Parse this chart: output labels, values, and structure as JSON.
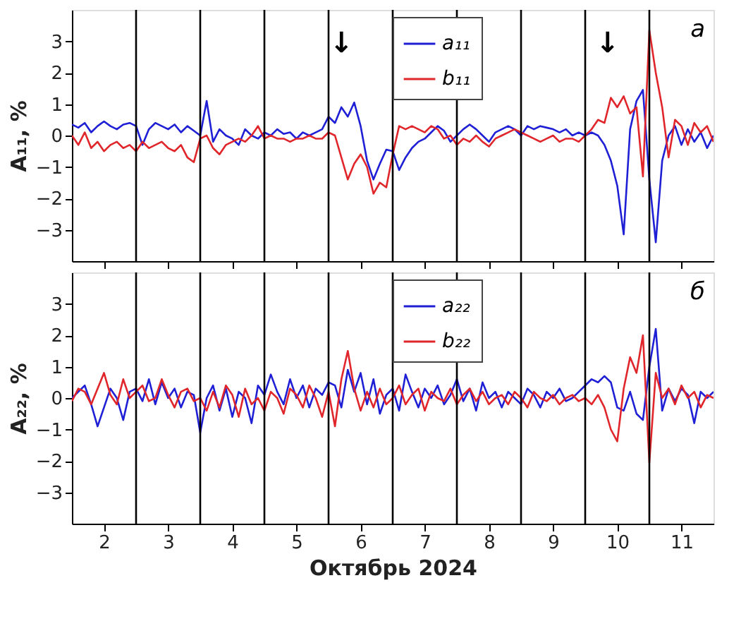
{
  "chart_data": [
    {
      "type": "line",
      "ylabel": "A₁₁, %",
      "tick_labels": "y",
      "legend": "top",
      "xlim": [
        1.5,
        11.5
      ],
      "ylim": [
        -4,
        4
      ],
      "xticks": [
        2,
        3,
        4,
        5,
        6,
        7,
        8,
        9,
        10,
        11
      ],
      "yticks": [
        -3,
        -2,
        -1,
        0,
        1,
        2,
        3
      ],
      "x": [
        1.5,
        1.6,
        1.7,
        1.8,
        1.9,
        2.0,
        2.1,
        2.2,
        2.3,
        2.4,
        2.5,
        2.6,
        2.7,
        2.8,
        2.9,
        3.0,
        3.1,
        3.2,
        3.3,
        3.4,
        3.5,
        3.6,
        3.7,
        3.8,
        3.9,
        4.0,
        4.1,
        4.2,
        4.3,
        4.4,
        4.5,
        4.6,
        4.7,
        4.8,
        4.9,
        5.0,
        5.1,
        5.2,
        5.3,
        5.4,
        5.5,
        5.6,
        5.7,
        5.8,
        5.9,
        6.0,
        6.1,
        6.2,
        6.3,
        6.4,
        6.5,
        6.6,
        6.7,
        6.8,
        6.9,
        7.0,
        7.1,
        7.2,
        7.3,
        7.4,
        7.5,
        7.6,
        7.7,
        7.8,
        7.9,
        8.0,
        8.1,
        8.2,
        8.3,
        8.4,
        8.5,
        8.6,
        8.7,
        8.8,
        8.9,
        9.0,
        9.1,
        9.2,
        9.3,
        9.4,
        9.5,
        9.6,
        9.7,
        9.8,
        9.9,
        10.0,
        10.1,
        10.2,
        10.3,
        10.4,
        10.5,
        10.6,
        10.7,
        10.8,
        10.9,
        11.0,
        11.1,
        11.2,
        11.3,
        11.4,
        11.5
      ],
      "series": [
        {
          "name": "a₁₁",
          "color": "#1f1fd6",
          "values": [
            0.35,
            0.25,
            0.4,
            0.1,
            0.3,
            0.45,
            0.3,
            0.2,
            0.35,
            0.4,
            0.3,
            -0.3,
            0.2,
            0.4,
            0.3,
            0.2,
            0.35,
            0.1,
            0.3,
            0.15,
            0.0,
            1.1,
            -0.2,
            0.2,
            0.0,
            -0.1,
            -0.3,
            0.2,
            0.0,
            -0.1,
            0.1,
            0.0,
            0.2,
            0.05,
            0.1,
            -0.1,
            0.1,
            0.0,
            0.1,
            0.2,
            0.6,
            0.4,
            0.9,
            0.6,
            1.05,
            0.3,
            -0.8,
            -1.4,
            -0.9,
            -0.45,
            -0.5,
            -1.1,
            -0.7,
            -0.4,
            -0.2,
            -0.1,
            0.1,
            0.3,
            0.15,
            -0.2,
            0.0,
            0.2,
            0.35,
            0.2,
            0.0,
            -0.2,
            0.1,
            0.2,
            0.3,
            0.2,
            0.0,
            0.3,
            0.2,
            0.3,
            0.25,
            0.2,
            0.1,
            0.2,
            0.0,
            0.1,
            0.0,
            0.1,
            0.0,
            -0.3,
            -0.8,
            -1.6,
            -3.15,
            0.2,
            1.1,
            1.45,
            -1.4,
            -3.4,
            -0.8,
            0.0,
            0.3,
            -0.3,
            0.2,
            -0.2,
            0.1,
            -0.4,
            0.0
          ]
        },
        {
          "name": "b₁₁",
          "color": "#e0262a",
          "values": [
            0.0,
            -0.3,
            0.1,
            -0.4,
            -0.2,
            -0.5,
            -0.3,
            -0.2,
            -0.4,
            -0.3,
            -0.5,
            -0.2,
            -0.4,
            -0.3,
            -0.2,
            -0.4,
            -0.5,
            -0.3,
            -0.7,
            -0.85,
            -0.1,
            0.0,
            -0.4,
            -0.6,
            -0.3,
            -0.2,
            -0.1,
            -0.2,
            0.0,
            0.3,
            -0.1,
            0.0,
            -0.1,
            -0.1,
            -0.2,
            -0.1,
            -0.1,
            0.0,
            -0.1,
            -0.1,
            0.1,
            0.0,
            -0.7,
            -1.4,
            -0.9,
            -0.6,
            -1.0,
            -1.85,
            -1.5,
            -1.65,
            -0.6,
            0.3,
            0.2,
            0.3,
            0.2,
            0.1,
            0.3,
            0.2,
            -0.1,
            0.0,
            -0.3,
            -0.1,
            -0.2,
            0.0,
            -0.2,
            -0.35,
            -0.1,
            0.0,
            0.1,
            0.2,
            0.1,
            0.0,
            -0.1,
            -0.2,
            -0.1,
            0.0,
            -0.2,
            -0.1,
            -0.1,
            -0.2,
            0.0,
            0.2,
            0.5,
            0.4,
            1.2,
            0.9,
            1.25,
            0.7,
            0.9,
            -1.3,
            3.35,
            2.0,
            0.9,
            -0.7,
            0.5,
            0.3,
            -0.3,
            0.4,
            0.1,
            0.3,
            -0.2
          ]
        }
      ],
      "ref_lines": [
        {
          "axis": "x",
          "value": 2.5,
          "color": "#000000"
        },
        {
          "axis": "x",
          "value": 3.5,
          "color": "#000000"
        },
        {
          "axis": "x",
          "value": 4.5,
          "color": "#000000"
        },
        {
          "axis": "x",
          "value": 5.5,
          "color": "#000000"
        },
        {
          "axis": "x",
          "value": 6.5,
          "color": "#000000"
        },
        {
          "axis": "x",
          "value": 7.5,
          "color": "#000000"
        },
        {
          "axis": "x",
          "value": 8.5,
          "color": "#000000"
        },
        {
          "axis": "x",
          "value": 9.5,
          "color": "#000000"
        },
        {
          "axis": "x",
          "value": 10.5,
          "color": "#000000"
        }
      ],
      "annotations": [
        "a",
        "↓",
        "↓"
      ]
    },
    {
      "type": "line",
      "ylabel": "A₂₂, %",
      "xlabel": "Октябрь 2024",
      "legend": "top",
      "xlim": [
        1.5,
        11.5
      ],
      "ylim": [
        -4,
        4
      ],
      "xticks": [
        2,
        3,
        4,
        5,
        6,
        7,
        8,
        9,
        10,
        11
      ],
      "yticks": [
        -3,
        -2,
        -1,
        0,
        1,
        2,
        3
      ],
      "x": [
        1.5,
        1.6,
        1.7,
        1.8,
        1.9,
        2.0,
        2.1,
        2.2,
        2.3,
        2.4,
        2.5,
        2.6,
        2.7,
        2.8,
        2.9,
        3.0,
        3.1,
        3.2,
        3.3,
        3.4,
        3.5,
        3.6,
        3.7,
        3.8,
        3.9,
        4.0,
        4.1,
        4.2,
        4.3,
        4.4,
        4.5,
        4.6,
        4.7,
        4.8,
        4.9,
        5.0,
        5.1,
        5.2,
        5.3,
        5.4,
        5.5,
        5.6,
        5.7,
        5.8,
        5.9,
        6.0,
        6.1,
        6.2,
        6.3,
        6.4,
        6.5,
        6.6,
        6.7,
        6.8,
        6.9,
        7.0,
        7.1,
        7.2,
        7.3,
        7.4,
        7.5,
        7.6,
        7.7,
        7.8,
        7.9,
        8.0,
        8.1,
        8.2,
        8.3,
        8.4,
        8.5,
        8.6,
        8.7,
        8.8,
        8.9,
        9.0,
        9.1,
        9.2,
        9.3,
        9.4,
        9.5,
        9.6,
        9.7,
        9.8,
        9.9,
        10.0,
        10.1,
        10.2,
        10.3,
        10.4,
        10.5,
        10.6,
        10.7,
        10.8,
        10.9,
        11.0,
        11.1,
        11.2,
        11.3,
        11.4,
        11.5
      ],
      "series": [
        {
          "name": "a₂₂",
          "color": "#1f1fd6",
          "values": [
            0.0,
            0.2,
            0.4,
            -0.2,
            -0.9,
            -0.3,
            0.3,
            0.0,
            -0.7,
            0.2,
            0.3,
            -0.1,
            0.6,
            -0.2,
            0.5,
            0.0,
            0.3,
            -0.3,
            0.2,
            0.1,
            -1.1,
            0.0,
            0.4,
            -0.4,
            0.3,
            -0.6,
            0.2,
            0.0,
            -0.8,
            0.4,
            0.1,
            0.75,
            0.2,
            -0.2,
            0.6,
            0.0,
            0.4,
            -0.3,
            0.3,
            0.1,
            0.5,
            0.4,
            -0.3,
            0.9,
            0.2,
            0.8,
            -0.2,
            0.6,
            -0.5,
            0.1,
            0.3,
            -0.4,
            0.75,
            0.2,
            -0.3,
            0.3,
            0.0,
            0.4,
            -0.2,
            0.1,
            0.6,
            -0.1,
            0.3,
            -0.4,
            0.5,
            0.0,
            0.2,
            -0.3,
            0.2,
            0.0,
            -0.2,
            0.3,
            0.1,
            -0.3,
            0.2,
            0.0,
            0.3,
            -0.1,
            0.0,
            0.2,
            0.4,
            0.6,
            0.5,
            0.7,
            0.5,
            -0.3,
            -0.4,
            0.2,
            -0.5,
            -0.7,
            1.0,
            2.2,
            -0.4,
            0.3,
            -0.1,
            0.3,
            0.1,
            -0.8,
            0.2,
            0.0,
            0.2
          ]
        },
        {
          "name": "b₂₂",
          "color": "#e0262a",
          "values": [
            -0.1,
            0.3,
            0.2,
            -0.2,
            0.3,
            0.8,
            0.1,
            -0.2,
            0.6,
            0.0,
            0.2,
            0.4,
            -0.1,
            0.0,
            0.6,
            0.1,
            -0.3,
            0.2,
            0.3,
            -0.1,
            0.0,
            -0.4,
            0.2,
            -0.3,
            0.4,
            0.1,
            -0.6,
            0.3,
            -0.2,
            0.0,
            -0.4,
            0.2,
            0.0,
            -0.5,
            0.3,
            0.1,
            -0.3,
            0.4,
            0.0,
            -0.6,
            0.2,
            -0.9,
            0.6,
            1.5,
            0.3,
            -0.4,
            0.2,
            -0.3,
            0.3,
            -0.2,
            0.0,
            0.4,
            -0.2,
            0.1,
            0.3,
            -0.4,
            0.2,
            0.0,
            -0.1,
            0.3,
            -0.2,
            0.1,
            0.3,
            -0.1,
            0.2,
            -0.2,
            0.0,
            0.1,
            -0.2,
            0.2,
            0.0,
            -0.3,
            0.2,
            0.0,
            -0.1,
            0.1,
            -0.2,
            0.0,
            0.1,
            -0.1,
            0.0,
            -0.2,
            0.1,
            -0.3,
            -1.0,
            -1.38,
            0.3,
            1.3,
            0.8,
            2.0,
            -2.05,
            0.8,
            0.0,
            0.3,
            -0.2,
            0.4,
            0.0,
            0.2,
            -0.3,
            0.1,
            0.0
          ]
        }
      ],
      "ref_lines": [
        {
          "axis": "x",
          "value": 2.5,
          "color": "#000000"
        },
        {
          "axis": "x",
          "value": 3.5,
          "color": "#000000"
        },
        {
          "axis": "x",
          "value": 4.5,
          "color": "#000000"
        },
        {
          "axis": "x",
          "value": 5.5,
          "color": "#000000"
        },
        {
          "axis": "x",
          "value": 6.5,
          "color": "#000000"
        },
        {
          "axis": "x",
          "value": 7.5,
          "color": "#000000"
        },
        {
          "axis": "x",
          "value": 8.5,
          "color": "#000000"
        },
        {
          "axis": "x",
          "value": 9.5,
          "color": "#000000"
        },
        {
          "axis": "x",
          "value": 10.5,
          "color": "#000000"
        }
      ],
      "annotations": [
        "б"
      ]
    }
  ]
}
